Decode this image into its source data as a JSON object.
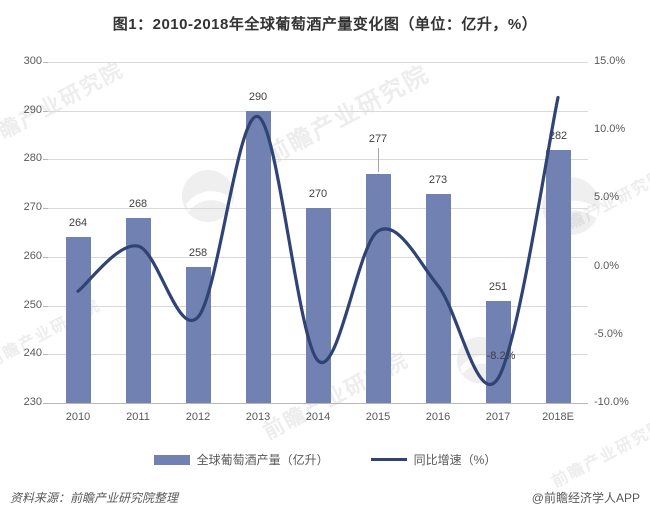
{
  "title": "图1：2010-2018年全球葡萄酒产量变化图（单位：亿升，%）",
  "source_note": "资料来源：前瞻产业研究院整理",
  "credit": "@前瞻经济学人APP",
  "watermark": {
    "text": "前瞻产业研究院"
  },
  "legend": {
    "bars": "全球葡萄酒产量（亿升）",
    "line": "同比增速（%）"
  },
  "colors": {
    "bar": "#7181b1",
    "line": "#2f4474",
    "grid": "#d9d9d9",
    "axis": "#b7b7b7",
    "label": "#404040",
    "tick_text": "#595959"
  },
  "chart_data": {
    "type": "bar",
    "subtype": "combo-bar-line-dual-axis",
    "title": "图1：2010-2018年全球葡萄酒产量变化图（单位：亿升，%）",
    "categories": [
      "2010",
      "2011",
      "2012",
      "2013",
      "2014",
      "2015",
      "2016",
      "2017",
      "2018E"
    ],
    "series": [
      {
        "name": "全球葡萄酒产量（亿升）",
        "type": "bar",
        "axis": "left",
        "values": [
          264,
          268,
          258,
          290,
          270,
          277,
          273,
          251,
          282
        ]
      },
      {
        "name": "同比增速（%）",
        "type": "line",
        "axis": "right",
        "values": [
          -1.8,
          1.5,
          -3.7,
          11.0,
          -6.9,
          2.6,
          -1.4,
          -8.2,
          12.4
        ],
        "annotation": {
          "index": 7,
          "label": "-8.2%"
        }
      }
    ],
    "left_axis": {
      "min": 230,
      "max": 300,
      "step": 10
    },
    "right_axis": {
      "min": -10,
      "max": 15,
      "step": 5,
      "suffix": "%",
      "decimals": 1
    },
    "bar_labels_visible": true,
    "raised_label_index": 5,
    "grid": true,
    "legend_position": "bottom",
    "xlabel": "",
    "ylabel_left": "亿升",
    "ylabel_right": "%"
  }
}
